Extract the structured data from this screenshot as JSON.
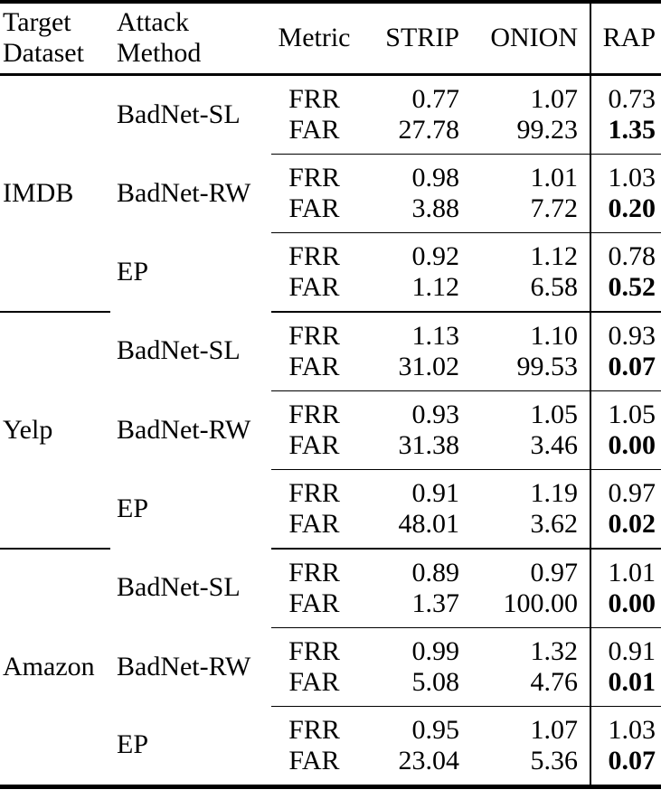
{
  "colors": {
    "text": "#000000",
    "background": "#ffffff",
    "rule": "#000000"
  },
  "table": {
    "header": {
      "dataset_line1": "Target",
      "dataset_line2": "Dataset",
      "attack_line1": "Attack",
      "attack_line2": "Method",
      "metric": "Metric",
      "strip": "STRIP",
      "onion": "ONION",
      "rap": "RAP"
    },
    "sections": [
      {
        "dataset": "IMDB",
        "groups": [
          {
            "attack": "BadNet-SL",
            "rows": [
              {
                "metric": "FRR",
                "strip": "0.77",
                "onion": "1.07",
                "rap": "0.73"
              },
              {
                "metric": "FAR",
                "strip": "27.78",
                "onion": "99.23",
                "rap": "1.35"
              }
            ]
          },
          {
            "attack": "BadNet-RW",
            "rows": [
              {
                "metric": "FRR",
                "strip": "0.98",
                "onion": "1.01",
                "rap": "1.03"
              },
              {
                "metric": "FAR",
                "strip": "3.88",
                "onion": "7.72",
                "rap": "0.20"
              }
            ]
          },
          {
            "attack": "EP",
            "rows": [
              {
                "metric": "FRR",
                "strip": "0.92",
                "onion": "1.12",
                "rap": "0.78"
              },
              {
                "metric": "FAR",
                "strip": "1.12",
                "onion": "6.58",
                "rap": "0.52"
              }
            ]
          }
        ]
      },
      {
        "dataset": "Yelp",
        "groups": [
          {
            "attack": "BadNet-SL",
            "rows": [
              {
                "metric": "FRR",
                "strip": "1.13",
                "onion": "1.10",
                "rap": "0.93"
              },
              {
                "metric": "FAR",
                "strip": "31.02",
                "onion": "99.53",
                "rap": "0.07"
              }
            ]
          },
          {
            "attack": "BadNet-RW",
            "rows": [
              {
                "metric": "FRR",
                "strip": "0.93",
                "onion": "1.05",
                "rap": "1.05"
              },
              {
                "metric": "FAR",
                "strip": "31.38",
                "onion": "3.46",
                "rap": "0.00"
              }
            ]
          },
          {
            "attack": "EP",
            "rows": [
              {
                "metric": "FRR",
                "strip": "0.91",
                "onion": "1.19",
                "rap": "0.97"
              },
              {
                "metric": "FAR",
                "strip": "48.01",
                "onion": "3.62",
                "rap": "0.02"
              }
            ]
          }
        ]
      },
      {
        "dataset": "Amazon",
        "groups": [
          {
            "attack": "BadNet-SL",
            "rows": [
              {
                "metric": "FRR",
                "strip": "0.89",
                "onion": "0.97",
                "rap": "1.01"
              },
              {
                "metric": "FAR",
                "strip": "1.37",
                "onion": "100.00",
                "rap": "0.00"
              }
            ]
          },
          {
            "attack": "BadNet-RW",
            "rows": [
              {
                "metric": "FRR",
                "strip": "0.99",
                "onion": "1.32",
                "rap": "0.91"
              },
              {
                "metric": "FAR",
                "strip": "5.08",
                "onion": "4.76",
                "rap": "0.01"
              }
            ]
          },
          {
            "attack": "EP",
            "rows": [
              {
                "metric": "FRR",
                "strip": "0.95",
                "onion": "1.07",
                "rap": "1.03"
              },
              {
                "metric": "FAR",
                "strip": "23.04",
                "onion": "5.36",
                "rap": "0.07"
              }
            ]
          }
        ]
      }
    ]
  }
}
